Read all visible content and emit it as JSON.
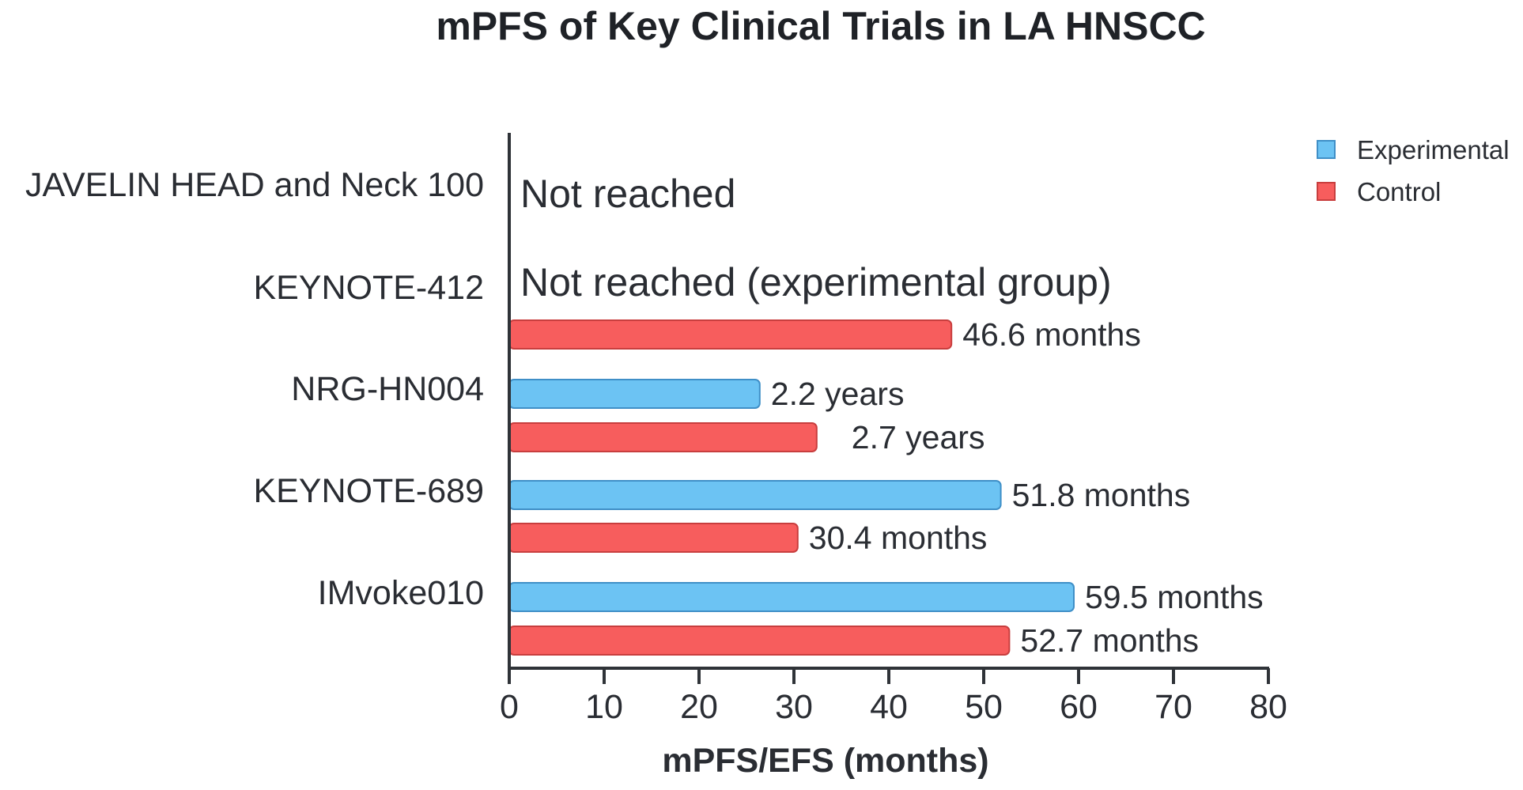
{
  "chart_data": {
    "type": "bar",
    "orientation": "horizontal",
    "title": "mPFS of Key Clinical Trials in LA HNSCC",
    "xlabel": "mPFS/EFS (months)",
    "ylabel": "",
    "xlim": [
      0,
      80
    ],
    "xticks": [
      "0",
      "10",
      "20",
      "30",
      "40",
      "50",
      "60",
      "70",
      "80"
    ],
    "categories": [
      "JAVELIN HEAD and Neck 100",
      "KEYNOTE-412",
      "NRG-HN004",
      "KEYNOTE-689",
      "IMvoke010"
    ],
    "series": [
      {
        "name": "Experimental",
        "color": "#6cc3f3",
        "values": [
          null,
          null,
          26.4,
          51.8,
          59.5
        ],
        "labels": [
          "",
          "",
          "2.2 years",
          "51.8 months",
          "59.5 months"
        ]
      },
      {
        "name": "Control",
        "color": "#f75d5d",
        "values": [
          null,
          46.6,
          32.4,
          30.4,
          52.7
        ],
        "labels": [
          "",
          "46.6 months",
          "2.7 years",
          "30.4 months",
          "52.7 months"
        ]
      }
    ],
    "annotations": [
      "Not reached",
      "Not reached (experimental group)"
    ],
    "legend_position": "top-right",
    "grid": false
  }
}
